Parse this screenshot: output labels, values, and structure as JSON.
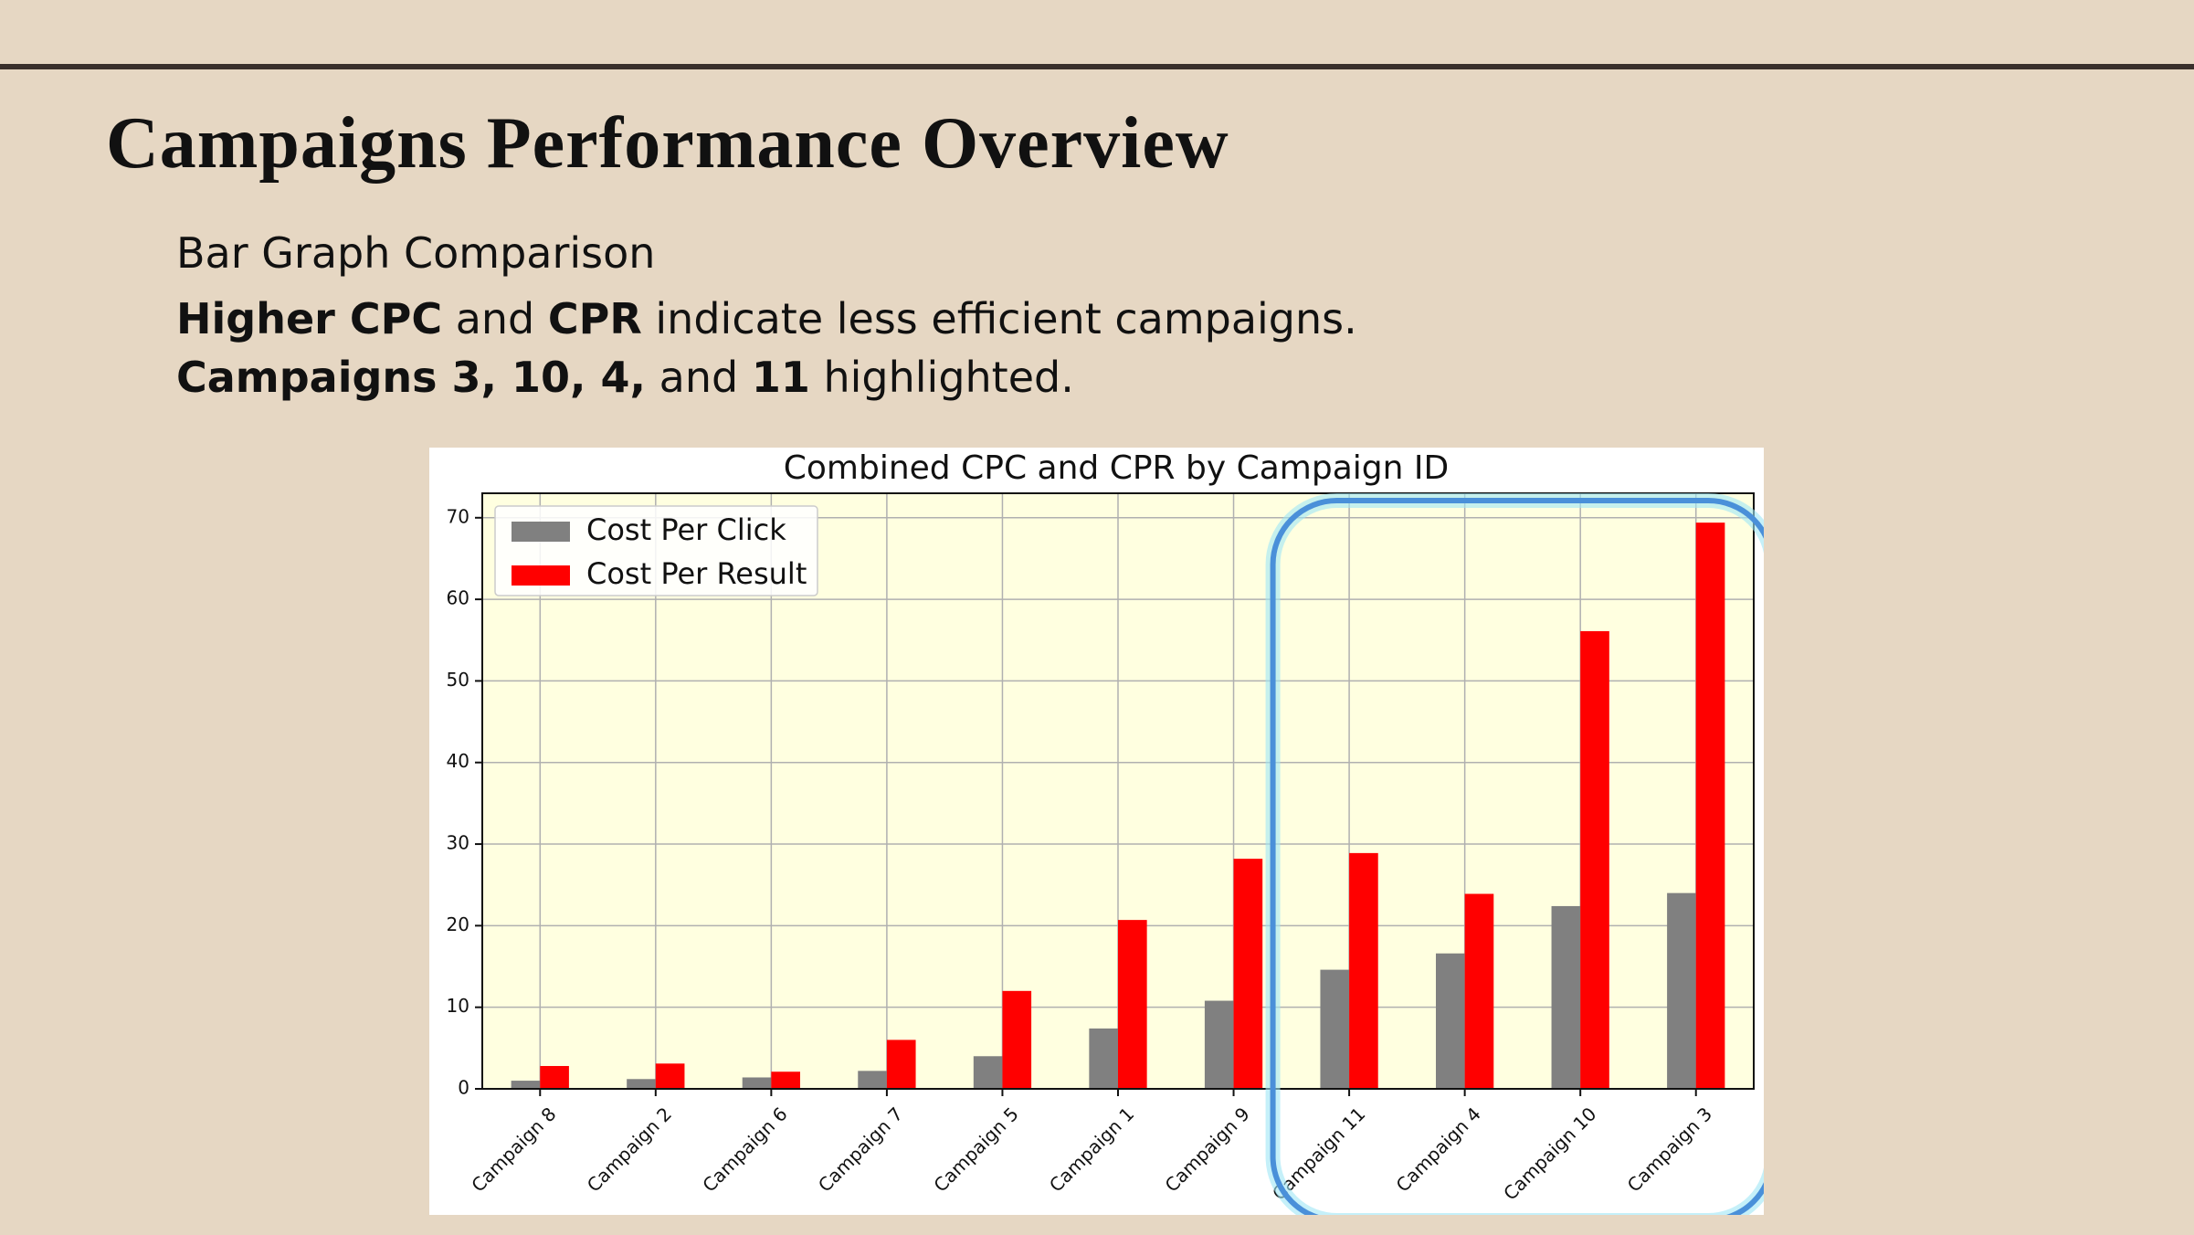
{
  "slide": {
    "title": "Campaigns Performance Overview",
    "line1": "Bar Graph Comparison",
    "line2": {
      "b1": "Higher CPC",
      "t1": " and ",
      "b2": "CPR",
      "t2": " indicate less efficient campaigns."
    },
    "line3": {
      "b1": "Campaigns 3, 10, 4,",
      "t1": " and ",
      "b2": "11",
      "t2": " highlighted."
    }
  },
  "chart_data": {
    "type": "bar",
    "title": "Combined CPC and CPR by Campaign ID",
    "xlabel": "",
    "ylabel": "",
    "categories": [
      "Campaign 8",
      "Campaign 2",
      "Campaign 6",
      "Campaign 7",
      "Campaign 5",
      "Campaign 1",
      "Campaign 9",
      "Campaign 11",
      "Campaign 4",
      "Campaign 10",
      "Campaign 3"
    ],
    "series": [
      {
        "name": "Cost Per Click",
        "color": "#808080",
        "values": [
          1.0,
          1.2,
          1.4,
          2.2,
          4.0,
          7.4,
          10.8,
          14.6,
          16.6,
          22.4,
          24.0
        ]
      },
      {
        "name": "Cost Per Result",
        "color": "#ff0000",
        "values": [
          2.8,
          3.1,
          2.1,
          6.0,
          12.0,
          20.7,
          28.2,
          28.9,
          23.9,
          56.1,
          69.4
        ]
      }
    ],
    "ylim": [
      0,
      73
    ],
    "yticks": [
      0,
      10,
      20,
      30,
      40,
      50,
      60,
      70
    ],
    "grid": true,
    "legend": "top-left",
    "background": "#ffffe0",
    "highlight": [
      "Campaign 11",
      "Campaign 4",
      "Campaign 10",
      "Campaign 3"
    ],
    "highlight_color": "#4a90d9"
  }
}
